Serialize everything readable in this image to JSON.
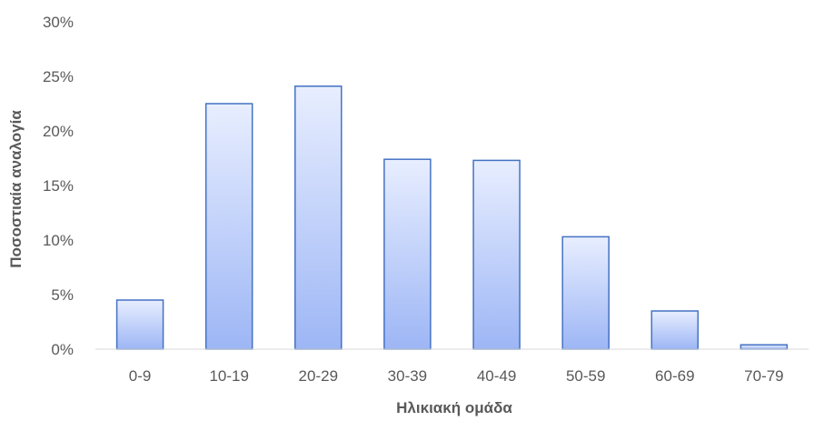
{
  "chart_data": {
    "type": "bar",
    "title": "",
    "xlabel": "Ηλικιακή ομάδα",
    "ylabel": "Ποσοστιαία αναλογία",
    "categories": [
      "0-9",
      "10-19",
      "20-29",
      "30-39",
      "40-49",
      "50-59",
      "60-69",
      "70-79"
    ],
    "values": [
      4.5,
      22.5,
      24.1,
      17.4,
      17.3,
      10.3,
      3.5,
      0.4
    ],
    "ylim": [
      0,
      30
    ],
    "y_ticks": [
      "0%",
      "5%",
      "10%",
      "15%",
      "20%",
      "25%",
      "30%"
    ],
    "y_tick_values": [
      0,
      5,
      10,
      15,
      20,
      25,
      30
    ],
    "value_format": "percent",
    "grid": false,
    "legend": "none",
    "colors": {
      "bar_fill_top": "#e8eeff",
      "bar_fill_bottom": "#9db6f5",
      "bar_stroke": "#4472c4",
      "axis_line": "#d9d9d9",
      "text": "#595959"
    }
  }
}
